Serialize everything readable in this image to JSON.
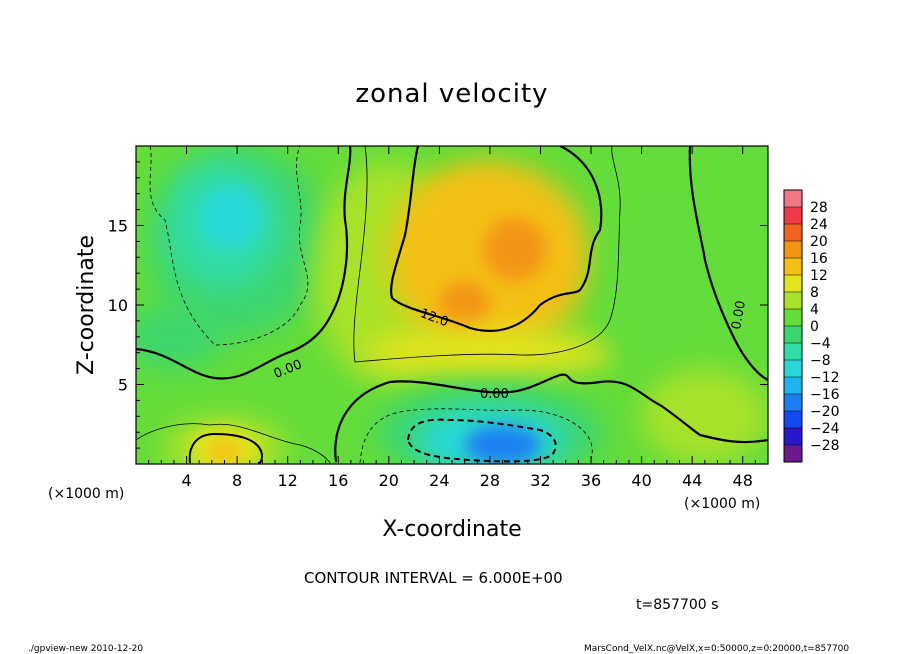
{
  "chart_data": {
    "type": "heatmap",
    "title": "zonal velocity",
    "xlabel": "X-coordinate",
    "ylabel": "Z-coordinate",
    "x_unit_left": "(×1000 m)",
    "x_unit_right": "(×1000 m)",
    "y_unit": "(×1000 m)",
    "xlim": [
      0,
      50
    ],
    "ylim": [
      0,
      20
    ],
    "xticks": [
      4,
      8,
      12,
      16,
      20,
      24,
      28,
      32,
      36,
      40,
      44,
      48
    ],
    "yticks": [
      5,
      10,
      15
    ],
    "colorbar": {
      "levels": [
        -28,
        -24,
        -20,
        -16,
        -12,
        -8,
        -4,
        0,
        4,
        8,
        12,
        16,
        20,
        24,
        28
      ],
      "labels": [
        "28",
        "24",
        "20",
        "16",
        "12",
        "8",
        "4",
        "0",
        "−4",
        "−8",
        "−12",
        "−16",
        "−20",
        "−24",
        "−28"
      ],
      "colors": [
        "#6a1a8c",
        "#2a18c8",
        "#1448f0",
        "#1a80f2",
        "#20b4ee",
        "#28d8d8",
        "#30dca8",
        "#3cd66e",
        "#64dc3a",
        "#a8e22a",
        "#e4e41e",
        "#f4c016",
        "#f49414",
        "#f06420",
        "#ee3a4a",
        "#f47884"
      ]
    },
    "features": [
      {
        "kind": "negative core",
        "x": 7,
        "z": 15,
        "value": -10
      },
      {
        "kind": "positive jet",
        "x": 28,
        "z": 14,
        "value": 17
      },
      {
        "kind": "negative core",
        "x": 28,
        "z": 1.5,
        "value": -18
      },
      {
        "kind": "positive core",
        "x": 7,
        "z": 1,
        "value": 13
      }
    ],
    "contour_labels": [
      "0.00",
      "12.0",
      "0.00",
      "0.00"
    ],
    "contour_interval_text": "CONTOUR INTERVAL = 6.000E+00",
    "time_text": "t=857700  s"
  },
  "footer": {
    "left": "./gpview-new   2010-12-20",
    "right": "MarsCond_VelX.nc@VelX,x=0:50000,z=0:20000,t=857700"
  }
}
